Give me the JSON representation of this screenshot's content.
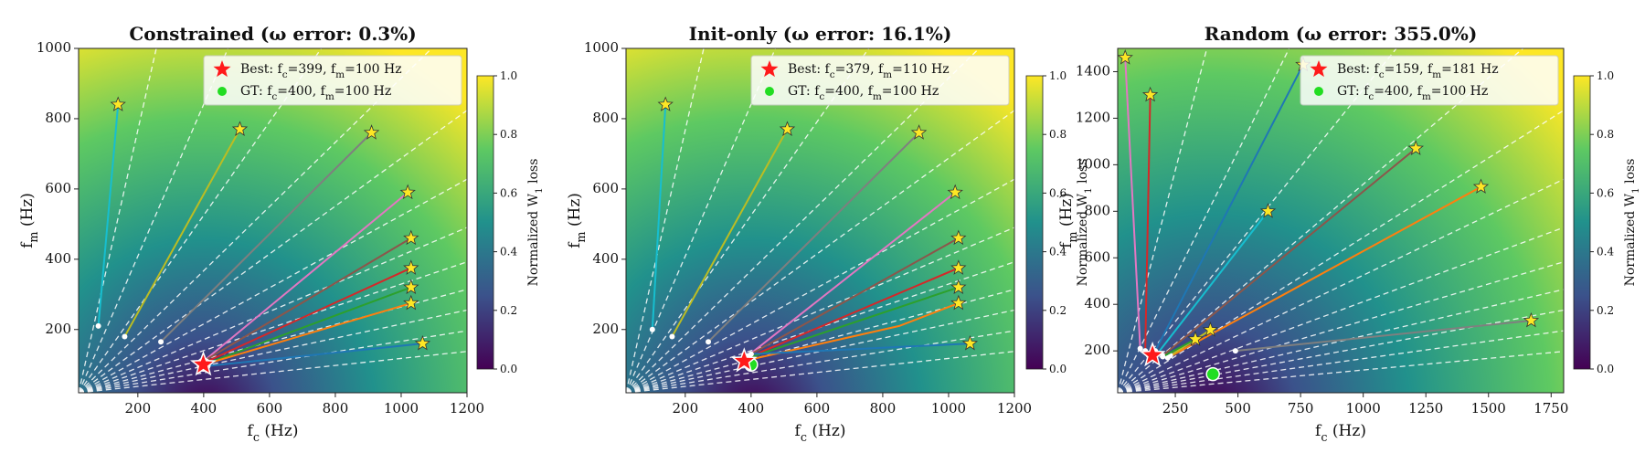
{
  "chart_data": [
    {
      "type": "trajectory",
      "title": "Constrained (ω error: 0.3%)",
      "xlabel": "f_c (Hz)",
      "ylabel": "f_m (Hz)",
      "xlim": [
        20,
        1200
      ],
      "ylim": [
        20,
        1000
      ],
      "xticks": [
        200,
        400,
        600,
        800,
        1000,
        1200
      ],
      "yticks": [
        200,
        400,
        600,
        800,
        1000
      ],
      "colorbar_label": "Normalized W_1 loss",
      "colorbar_ticks": [
        {
          "value": 0,
          "label": "0.0"
        },
        {
          "value": 0.2,
          "label": "0.2"
        },
        {
          "value": 0.4,
          "label": "0.4"
        },
        {
          "value": 0.6,
          "label": "0.6"
        },
        {
          "value": 0.8,
          "label": "0.8"
        },
        {
          "value": 1,
          "label": "1.0"
        }
      ],
      "legend": [
        "Best: f_c=399, f_m=100 Hz",
        "GT: f_c=400, f_m=100 Hz"
      ],
      "best": {
        "x": 399,
        "y": 100,
        "color": "#ff1a1a"
      },
      "gt": {
        "x": 400,
        "y": 100,
        "color": "#22dd22"
      },
      "series": [
        {
          "color": "#17becf",
          "x": [
            80,
            140
          ],
          "y": [
            210,
            840
          ]
        },
        {
          "color": "#bcbd22",
          "x": [
            160,
            510
          ],
          "y": [
            180,
            770
          ]
        },
        {
          "color": "#7f7f7f",
          "x": [
            270,
            910
          ],
          "y": [
            165,
            760
          ]
        },
        {
          "color": "#e377c2",
          "x": [
            400,
            1020
          ],
          "y": [
            110,
            590
          ]
        },
        {
          "color": "#8c564b",
          "x": [
            400,
            1030
          ],
          "y": [
            110,
            460
          ]
        },
        {
          "color": "#d62728",
          "x": [
            400,
            1030
          ],
          "y": [
            105,
            375
          ]
        },
        {
          "color": "#2ca02c",
          "x": [
            400,
            1030
          ],
          "y": [
            100,
            320
          ]
        },
        {
          "color": "#ff7f0e",
          "x": [
            400,
            1030
          ],
          "y": [
            100,
            275
          ]
        },
        {
          "color": "#1f77b4",
          "x": [
            400,
            1065
          ],
          "y": [
            95,
            160
          ]
        }
      ]
    },
    {
      "type": "trajectory",
      "title": "Init-only (ω error: 16.1%)",
      "xlabel": "f_c (Hz)",
      "ylabel": "f_m (Hz)",
      "xlim": [
        20,
        1200
      ],
      "ylim": [
        20,
        1000
      ],
      "xticks": [
        200,
        400,
        600,
        800,
        1000,
        1200
      ],
      "yticks": [
        200,
        400,
        600,
        800,
        1000
      ],
      "colorbar_label": "Normalized W_1 loss",
      "colorbar_ticks": [
        {
          "value": 0,
          "label": "0.0"
        },
        {
          "value": 0.2,
          "label": "0.2"
        },
        {
          "value": 0.4,
          "label": "0.4"
        },
        {
          "value": 0.6,
          "label": "0.6"
        },
        {
          "value": 0.8,
          "label": "0.8"
        },
        {
          "value": 1,
          "label": "1.0"
        }
      ],
      "legend": [
        "Best: f_c=379, f_m=110 Hz",
        "GT: f_c=400, f_m=100 Hz"
      ],
      "best": {
        "x": 379,
        "y": 110,
        "color": "#ff1a1a"
      },
      "gt": {
        "x": 400,
        "y": 100,
        "color": "#22dd22"
      },
      "series": [
        {
          "color": "#17becf",
          "x": [
            100,
            140
          ],
          "y": [
            200,
            840
          ]
        },
        {
          "color": "#bcbd22",
          "x": [
            160,
            510
          ],
          "y": [
            180,
            770
          ]
        },
        {
          "color": "#7f7f7f",
          "x": [
            270,
            910
          ],
          "y": [
            165,
            760
          ]
        },
        {
          "color": "#e377c2",
          "x": [
            390,
            1020
          ],
          "y": [
            125,
            590
          ]
        },
        {
          "color": "#8c564b",
          "x": [
            390,
            1030
          ],
          "y": [
            125,
            460
          ]
        },
        {
          "color": "#d62728",
          "x": [
            390,
            1030
          ],
          "y": [
            120,
            375
          ]
        },
        {
          "color": "#2ca02c",
          "x": [
            395,
            1030
          ],
          "y": [
            120,
            320
          ]
        },
        {
          "color": "#ff7f0e",
          "x": [
            400,
            850,
            1030
          ],
          "y": [
            115,
            210,
            275
          ]
        },
        {
          "color": "#1f77b4",
          "x": [
            400,
            1065
          ],
          "y": [
            130,
            160
          ]
        }
      ]
    },
    {
      "type": "trajectory",
      "title": "Random (ω error: 355.0%)",
      "xlabel": "f_c (Hz)",
      "ylabel": "f_m (Hz)",
      "xlim": [
        20,
        1800
      ],
      "ylim": [
        20,
        1500
      ],
      "xticks": [
        250,
        500,
        750,
        1000,
        1250,
        1500,
        1750
      ],
      "yticks": [
        200,
        400,
        600,
        800,
        1000,
        1200,
        1400
      ],
      "colorbar_label": "Normalized W_1 loss",
      "colorbar_ticks": [
        {
          "value": 0,
          "label": "0.0"
        },
        {
          "value": 0.2,
          "label": "0.2"
        },
        {
          "value": 0.4,
          "label": "0.4"
        },
        {
          "value": 0.6,
          "label": "0.6"
        },
        {
          "value": 0.8,
          "label": "0.8"
        },
        {
          "value": 1,
          "label": "1.0"
        }
      ],
      "legend": [
        "Best: f_c=159, f_m=181 Hz",
        "GT: f_c=400, f_m=100 Hz"
      ],
      "best": {
        "x": 159,
        "y": 181,
        "color": "#ff1a1a"
      },
      "gt": {
        "x": 400,
        "y": 100,
        "color": "#22dd22"
      },
      "series": [
        {
          "color": "#e377c2",
          "x": [
            110,
            50
          ],
          "y": [
            210,
            1460
          ]
        },
        {
          "color": "#d62728",
          "x": [
            130,
            150
          ],
          "y": [
            200,
            1300
          ]
        },
        {
          "color": "#1f77b4",
          "x": [
            170,
            760
          ],
          "y": [
            200,
            1430
          ]
        },
        {
          "color": "#8c564b",
          "x": [
            200,
            1210
          ],
          "y": [
            180,
            1070
          ]
        },
        {
          "color": "#ff7f0e",
          "x": [
            220,
            1470
          ],
          "y": [
            170,
            905
          ]
        },
        {
          "color": "#17becf",
          "x": [
            180,
            620
          ],
          "y": [
            190,
            800
          ]
        },
        {
          "color": "#bcbd22",
          "x": [
            230,
            390
          ],
          "y": [
            180,
            290
          ]
        },
        {
          "color": "#2ca02c",
          "x": [
            200,
            330
          ],
          "y": [
            175,
            250
          ]
        },
        {
          "color": "#7f7f7f",
          "x": [
            490,
            1670
          ],
          "y": [
            200,
            330
          ]
        }
      ]
    }
  ]
}
